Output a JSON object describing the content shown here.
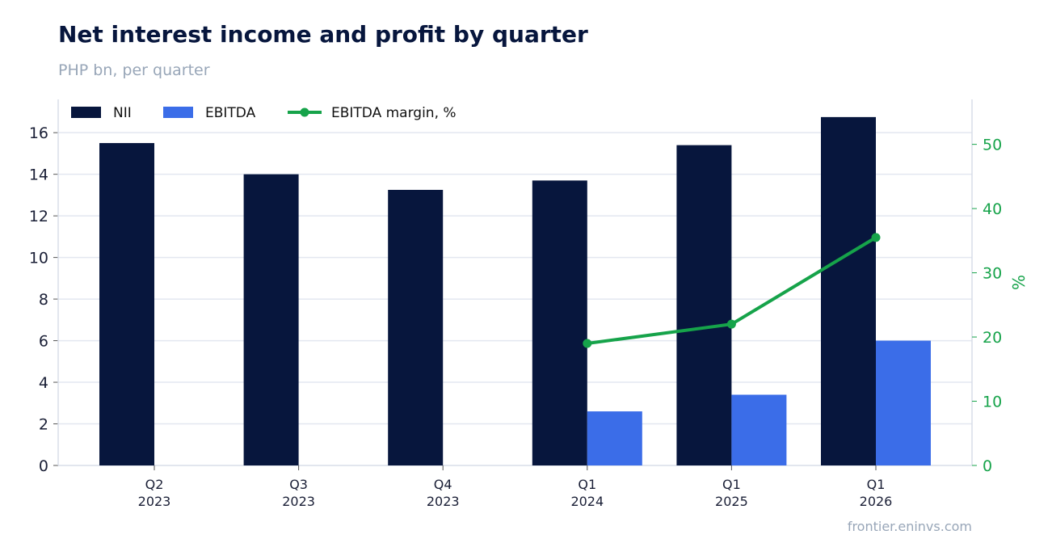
{
  "title": "Net interest income and profit by quarter",
  "subtitle": "PHP bn, per quarter",
  "source": "frontier.eninvs.com",
  "colors": {
    "nii": "#07163d",
    "ebitda": "#3b6de8",
    "margin": "#16a34a",
    "grid": "#e3e7f0",
    "axis_text": "#1a1f36",
    "right_axis_text": "#16a34a"
  },
  "chart_data": {
    "type": "bar",
    "categories": [
      [
        "Q2",
        "2023"
      ],
      [
        "Q3",
        "2023"
      ],
      [
        "Q4",
        "2023"
      ],
      [
        "Q1",
        "2024"
      ],
      [
        "Q1",
        "2025"
      ],
      [
        "Q1",
        "2026"
      ]
    ],
    "series": [
      {
        "name": "NII",
        "kind": "bar",
        "axis": "left",
        "values": [
          15.5,
          14.0,
          13.25,
          13.7,
          15.4,
          16.75
        ]
      },
      {
        "name": "EBITDA",
        "kind": "bar",
        "axis": "left",
        "values": [
          null,
          null,
          null,
          2.6,
          3.4,
          6.0
        ]
      },
      {
        "name": "EBITDA margin, %",
        "kind": "line",
        "axis": "right",
        "values": [
          null,
          null,
          null,
          19.0,
          22.0,
          35.5
        ]
      }
    ],
    "ylim": [
      0,
      17.6
    ],
    "yticks": [
      0,
      2,
      4,
      6,
      8,
      10,
      12,
      14,
      16
    ],
    "y2lim": [
      0,
      57
    ],
    "y2ticks": [
      0,
      10,
      20,
      30,
      40,
      50
    ],
    "y2label": "%",
    "grid": true,
    "legend": "top-left"
  }
}
